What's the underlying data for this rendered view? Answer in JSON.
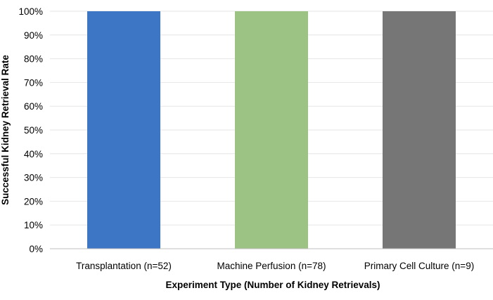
{
  "chart_data": {
    "type": "bar",
    "categories": [
      "Transplantation (n=52)",
      "Machine Perfusion (n=78)",
      "Primary Cell Culture (n=9)"
    ],
    "values": [
      100,
      100,
      100
    ],
    "colors": [
      "#3d76c4",
      "#9dc384",
      "#767676"
    ],
    "xlabel": "Experiment Type (Number of Kidney Retrievals)",
    "ylabel": "Successful Kidney Retrieval Rate",
    "ylim": [
      0,
      100
    ],
    "yticks": [
      "0%",
      "10%",
      "20%",
      "30%",
      "40%",
      "50%",
      "60%",
      "70%",
      "80%",
      "90%",
      "100%"
    ],
    "grid": true,
    "gridColor": "#e6e6e6",
    "axisColor": "#bfbfbf",
    "textColor": "#000000"
  }
}
